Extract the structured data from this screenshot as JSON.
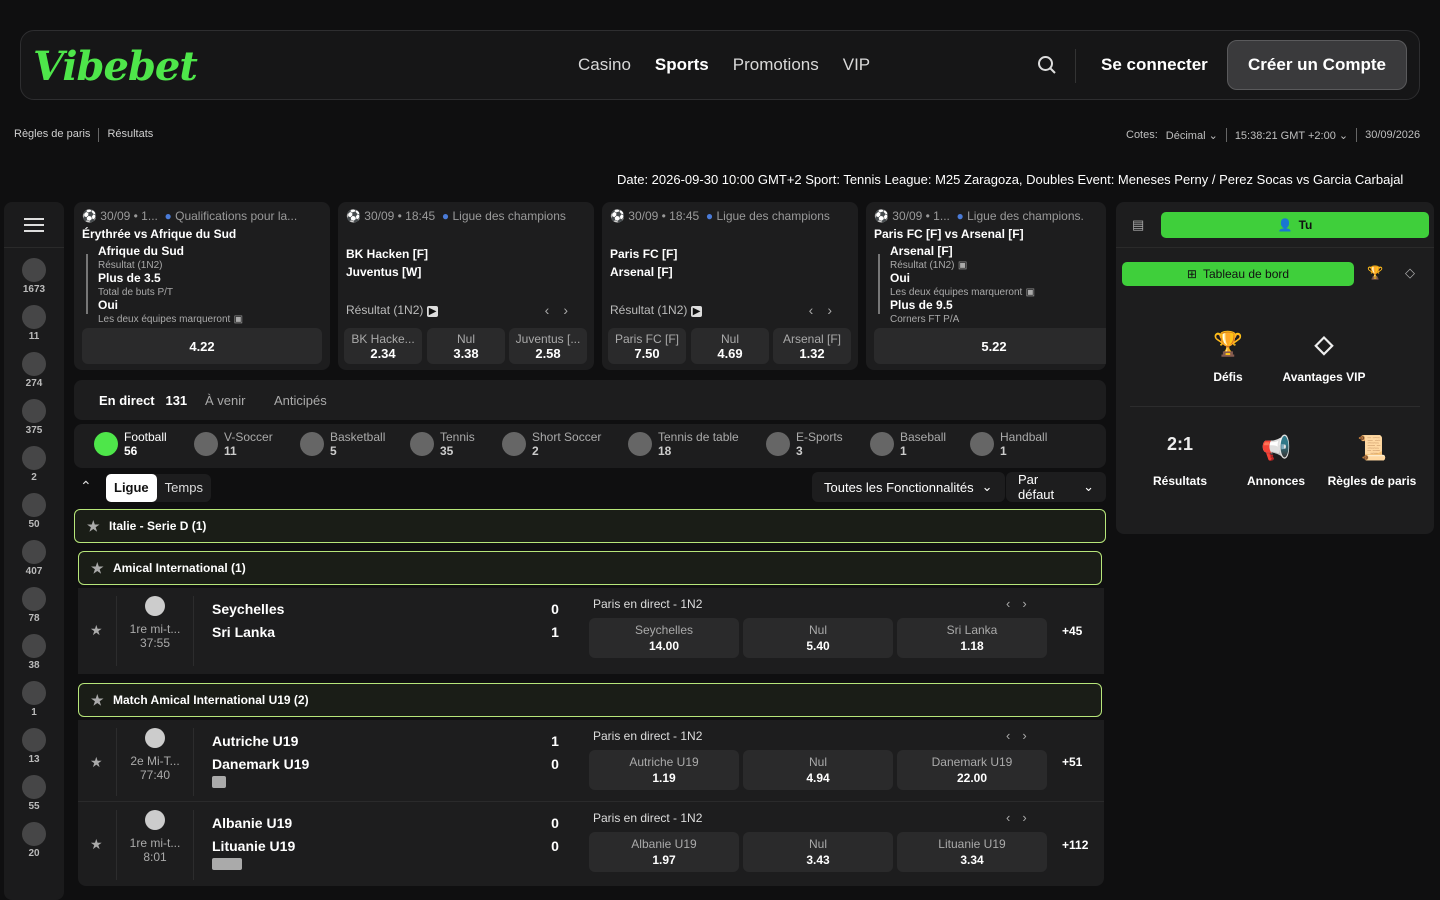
{
  "header": {
    "logo": "Vibebet",
    "nav": [
      "Casino",
      "Sports",
      "Promotions",
      "VIP"
    ],
    "active_nav": "Sports",
    "login": "Se connecter",
    "signup": "Créer un Compte"
  },
  "subbar": {
    "left": [
      "Règles de paris",
      "Résultats"
    ],
    "odds_label": "Cotes:",
    "odds_value": "Décimal",
    "time": "15:38:21 GMT +2:00",
    "date": "30/09/2026"
  },
  "ticker": "Date: 2026-09-30 10:00 GMT+2 Sport: Tennis League: M25 Zaragoza, Doubles Event: Meneses Perny / Perez Socas vs Garcia Carbajal",
  "sidebar": {
    "counts": [
      "1673",
      "11",
      "274",
      "375",
      "2",
      "50",
      "407",
      "78",
      "38",
      "1",
      "13",
      "55",
      "20"
    ]
  },
  "cards": [
    {
      "meta": "30/09 • 1...",
      "league": "Qualifications pour la...",
      "title": "Érythrée vs Afrique du Sud",
      "l1": "Afrique du Sud",
      "l1s": "Résultat (1N2)",
      "l2": "Plus de 3.5",
      "l2s": "Total de buts P/T",
      "l3": "Oui",
      "l3s": "Les deux équipes marqueront",
      "odd": "4.22"
    },
    {
      "meta": "30/09 • 18:45",
      "league": "Ligue des champions",
      "team1": "BK Hacken [F]",
      "team2": "Juventus [W]",
      "market": "Résultat (1N2)",
      "odds": [
        {
          "label": "BK Hacke...",
          "value": "2.34"
        },
        {
          "label": "Nul",
          "value": "3.38"
        },
        {
          "label": "Juventus [...",
          "value": "2.58"
        }
      ]
    },
    {
      "meta": "30/09 • 18:45",
      "league": "Ligue des champions",
      "team1": "Paris FC [F]",
      "team2": "Arsenal [F]",
      "market": "Résultat (1N2)",
      "odds": [
        {
          "label": "Paris FC [F]",
          "value": "7.50"
        },
        {
          "label": "Nul",
          "value": "4.69"
        },
        {
          "label": "Arsenal [F]",
          "value": "1.32"
        }
      ]
    },
    {
      "meta": "30/09 • 1...",
      "league": "Ligue des champions.",
      "title": "Paris FC [F] vs Arsenal [F]",
      "l1": "Arsenal [F]",
      "l1s": "Résultat (1N2)",
      "l2": "Oui",
      "l2s": "Les deux équipes marqueront",
      "l3": "Plus de 9.5",
      "l3s": "Corners FT P/A",
      "odd": "5.22"
    }
  ],
  "tabs": {
    "live": "En direct",
    "live_count": "131",
    "upcoming": "À venir",
    "future": "Anticipés"
  },
  "sports": [
    {
      "name": "Football",
      "count": "56"
    },
    {
      "name": "V-Soccer",
      "count": "11"
    },
    {
      "name": "Basketball",
      "count": "5"
    },
    {
      "name": "Tennis",
      "count": "35"
    },
    {
      "name": "Short Soccer",
      "count": "2"
    },
    {
      "name": "Tennis de table",
      "count": "18"
    },
    {
      "name": "E-Sports",
      "count": "3"
    },
    {
      "name": "Baseball",
      "count": "1"
    },
    {
      "name": "Handball",
      "count": "1"
    }
  ],
  "filters": {
    "seg_on": "Ligue",
    "seg_off": "Temps",
    "features": "Toutes les Fonctionnalités",
    "sort": "Par défaut"
  },
  "leagues": [
    {
      "name": "Italie - Serie D (1)"
    },
    {
      "name": "Amical International (1)"
    },
    {
      "name": "Match Amical International U19 (2)"
    }
  ],
  "matches": [
    {
      "period": "1re mi-t...",
      "clock": "37:55",
      "home": "Seychelles",
      "away": "Sri Lanka",
      "hs": "0",
      "as": "1",
      "market": "Paris en direct - 1N2",
      "o1l": "Seychelles",
      "o1": "14.00",
      "oxl": "Nul",
      "ox": "5.40",
      "o2l": "Sri Lanka",
      "o2": "1.18",
      "more": "+45"
    },
    {
      "period": "2e Mi-T...",
      "clock": "77:40",
      "home": "Autriche U19",
      "away": "Danemark U19",
      "hs": "1",
      "as": "0",
      "market": "Paris en direct - 1N2",
      "o1l": "Autriche U19",
      "o1": "1.19",
      "oxl": "Nul",
      "ox": "4.94",
      "o2l": "Danemark U19",
      "o2": "22.00",
      "more": "+51"
    },
    {
      "period": "1re mi-t...",
      "clock": "8:01",
      "home": "Albanie U19",
      "away": "Lituanie U19",
      "hs": "0",
      "as": "0",
      "market": "Paris en direct - 1N2",
      "o1l": "Albanie U19",
      "o1": "1.97",
      "oxl": "Nul",
      "ox": "3.43",
      "o2l": "Lituanie U19",
      "o2": "3.34",
      "more": "+112"
    }
  ],
  "right_panel": {
    "tu": "Tu",
    "dashboard": "Tableau de bord",
    "items": [
      "Défis",
      "Avantages VIP",
      "Résultats",
      "Annonces",
      "Règles de paris"
    ],
    "results_icon": "2:1"
  },
  "colors": {
    "accent": "#4ee64a",
    "league_border": "#b7e67a"
  }
}
